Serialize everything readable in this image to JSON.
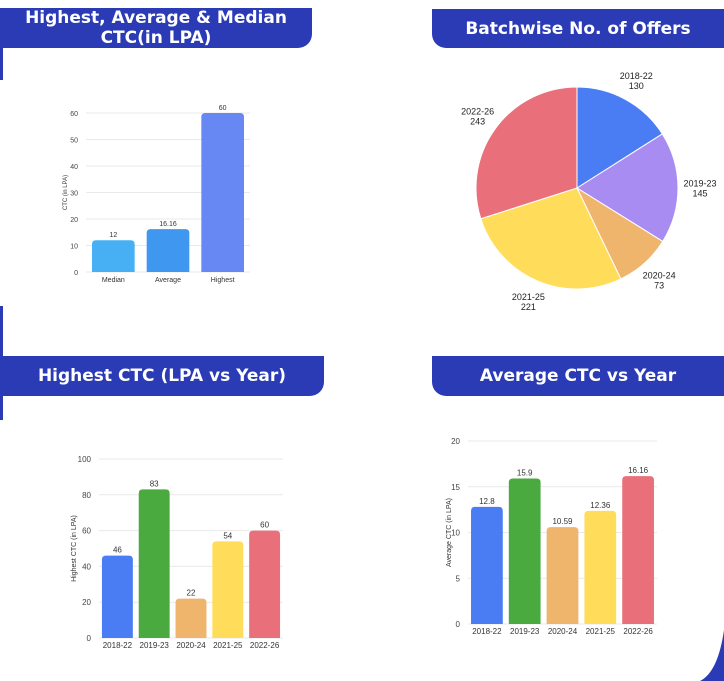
{
  "headers": {
    "h1": "Highest, Average & Median CTC(in LPA)",
    "h2": "Batchwise No. of Offers",
    "h3": "Highest CTC (LPA vs Year)",
    "h4": "Average CTC vs Year"
  },
  "chart_data": [
    {
      "id": "ctc-summary",
      "type": "bar",
      "categories": [
        "Median",
        "Average",
        "Highest"
      ],
      "values": [
        12,
        16.16,
        60
      ],
      "labels": [
        "12",
        "16.16",
        "60"
      ],
      "ylabel": "CTC (in LPA)",
      "ylim": [
        0,
        60
      ],
      "yticks": [
        0,
        10,
        20,
        30,
        40,
        50,
        60
      ],
      "colors": [
        "#47b0f5",
        "#3f97f0",
        "#6787f2"
      ],
      "grid": true
    },
    {
      "id": "offers-pie",
      "type": "pie",
      "categories": [
        "2018-22",
        "2019-23",
        "2020-24",
        "2021-25",
        "2022-26"
      ],
      "values": [
        130,
        145,
        73,
        221,
        243
      ],
      "labels": [
        "130",
        "145",
        "73",
        "221",
        "243"
      ],
      "colors": [
        "#4a7cf3",
        "#a98cf2",
        "#efb56c",
        "#ffdc5a",
        "#e9707b"
      ]
    },
    {
      "id": "highest-ctc-year",
      "type": "bar",
      "categories": [
        "2018-22",
        "2019-23",
        "2020-24",
        "2021-25",
        "2022-26"
      ],
      "values": [
        46,
        83,
        22,
        54,
        60
      ],
      "labels": [
        "46",
        "83",
        "22",
        "54",
        "60"
      ],
      "ylabel": "Highest CTC (in LPA)",
      "ylim": [
        0,
        100
      ],
      "yticks": [
        0,
        20,
        40,
        60,
        80,
        100
      ],
      "colors": [
        "#4a7cf3",
        "#4aaa3f",
        "#efb56c",
        "#ffdc5a",
        "#e9707b"
      ],
      "grid": true
    },
    {
      "id": "average-ctc-year",
      "type": "bar",
      "categories": [
        "2018-22",
        "2019-23",
        "2020-24",
        "2021-25",
        "2022-26"
      ],
      "values": [
        12.8,
        15.9,
        10.59,
        12.36,
        16.16
      ],
      "labels": [
        "12.8",
        "15.9",
        "10.59",
        "12.36",
        "16.16"
      ],
      "ylabel": "Average CTC (in LPA)",
      "ylim": [
        0,
        20
      ],
      "yticks": [
        0,
        5,
        10,
        15,
        20
      ],
      "colors": [
        "#4a7cf3",
        "#4aaa3f",
        "#efb56c",
        "#ffdc5a",
        "#e9707b"
      ],
      "grid": true
    }
  ]
}
